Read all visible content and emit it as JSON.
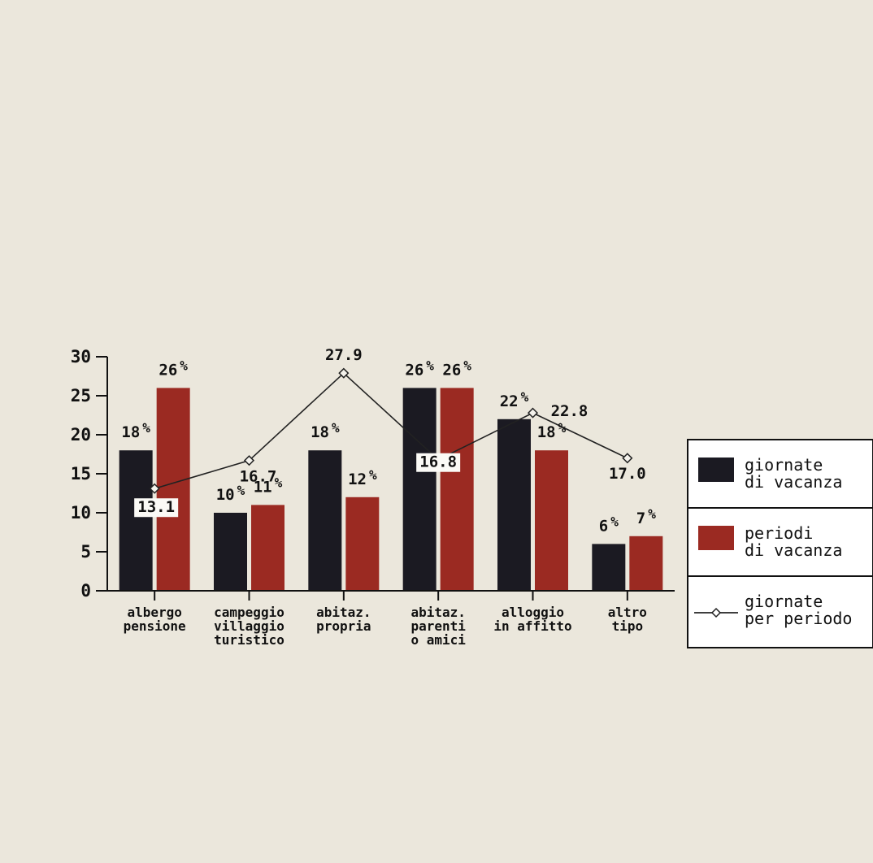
{
  "chart_data": {
    "type": "bar",
    "categories": [
      [
        "albergo",
        "pensione"
      ],
      [
        "campeggio",
        "villaggio",
        "turistico"
      ],
      [
        "abitaz.",
        "propria"
      ],
      [
        "abitaz.",
        "parenti",
        "o amici"
      ],
      [
        "alloggio",
        "in affitto"
      ],
      [
        "altro",
        "tipo"
      ]
    ],
    "ylim": [
      0,
      30
    ],
    "yticks": [
      0,
      5,
      10,
      15,
      20,
      25,
      30
    ],
    "ytick_labels": [
      "0",
      "5",
      "10",
      "15",
      "20",
      "25",
      "30"
    ],
    "series": [
      {
        "name": "giornate di vacanza",
        "legend_lines": [
          "giornate",
          "di vacanza"
        ],
        "kind": "bar",
        "color": "#1b1a22",
        "values": [
          18,
          10,
          18,
          26,
          22,
          6
        ],
        "labels": [
          "18",
          "10",
          "18",
          "26",
          "22",
          "6"
        ]
      },
      {
        "name": "periodi di vacanza",
        "legend_lines": [
          "periodi",
          "di vacanza"
        ],
        "kind": "bar",
        "color": "#9b2a22",
        "values": [
          26,
          11,
          12,
          26,
          18,
          7
        ],
        "labels": [
          "26",
          "11",
          "12",
          "26",
          "18",
          "7"
        ]
      },
      {
        "name": "giornate per periodo",
        "legend_lines": [
          "giornate",
          "per periodo"
        ],
        "kind": "line",
        "color": "#222222",
        "values": [
          13.1,
          16.7,
          27.9,
          16.8,
          22.8,
          17.0
        ],
        "labels": [
          "13.1",
          "16.7",
          "27.9",
          "16.8",
          "22.8",
          "17.0"
        ]
      }
    ],
    "percent_sign": "%",
    "grid": false,
    "legend_position": "right"
  }
}
